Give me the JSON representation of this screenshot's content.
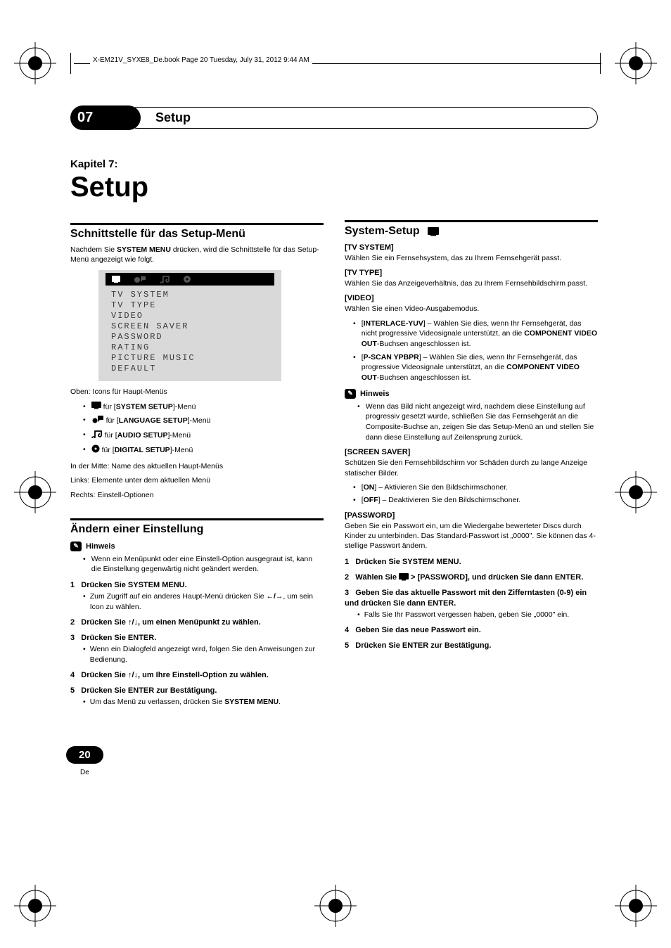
{
  "book_header": "X-EM21V_SYXE8_De.book  Page 20  Tuesday, July 31, 2012  9:44 AM",
  "chapter_num": "07",
  "chapter_banner_title": "Setup",
  "kapitel_label": "Kapitel 7:",
  "big_title": "Setup",
  "col1": {
    "sec1": {
      "title": "Schnittstelle für das Setup-Menü",
      "intro_a": "Nachdem Sie ",
      "intro_b": "SYSTEM MENU",
      "intro_c": " drücken, wird die Schnittstelle für das Setup-Menü angezeigt wie folgt.",
      "menu_items": [
        "TV SYSTEM",
        "TV TYPE",
        "VIDEO",
        "SCREEN SAVER",
        "PASSWORD",
        "RATING",
        "PICTURE MUSIC",
        "DEFAULT"
      ],
      "caption1": "Oben: Icons für Haupt-Menüs",
      "bullets": [
        {
          "pre": " für [",
          "b": "SYSTEM SETUP",
          "post": "]-Menü",
          "icon": "tv"
        },
        {
          "pre": " für [",
          "b": "LANGUAGE SETUP",
          "post": "]-Menü",
          "icon": "head"
        },
        {
          "pre": " für [",
          "b": "AUDIO SETUP",
          "post": "]-Menü",
          "icon": "note"
        },
        {
          "pre": " für [",
          "b": "DIGITAL SETUP",
          "post": "]-Menü",
          "icon": "disc"
        }
      ],
      "caption2": "In der Mitte: Name des aktuellen Haupt-Menüs",
      "caption3": "Links: Elemente unter dem aktuellen Menü",
      "caption4": "Rechts: Einstell-Optionen"
    },
    "sec2": {
      "title": "Ändern einer Einstellung",
      "hinweis_label": "Hinweis",
      "hinweis_text": "Wenn ein Menüpunkt oder eine Einstell-Option ausgegraut ist, kann die Einstellung gegenwärtig nicht geändert werden.",
      "steps": [
        {
          "n": "1",
          "t": "Drücken Sie SYSTEM MENU.",
          "sub": "Zum Zugriff auf ein anderes Haupt-Menü drücken Sie ",
          "sub_arrows": "←/→",
          "sub_end": ", um sein Icon zu wählen."
        },
        {
          "n": "2",
          "t": "Drücken Sie ",
          "arrows": "↑/↓",
          "t2": ", um einen Menüpunkt zu wählen."
        },
        {
          "n": "3",
          "t": "Drücken Sie ENTER.",
          "sub": "Wenn ein Dialogfeld angezeigt wird, folgen Sie den Anweisungen zur Bedienung."
        },
        {
          "n": "4",
          "t": "Drücken Sie ",
          "arrows": "↑/↓",
          "t2": ", um Ihre Einstell-Option zu wählen."
        },
        {
          "n": "5",
          "t": "Drücken Sie ENTER zur Bestätigung.",
          "sub": "Um das Menü zu verlassen, drücken Sie ",
          "sub_b": "SYSTEM MENU",
          "sub_end": "."
        }
      ]
    }
  },
  "col2": {
    "title": "System-Setup",
    "tv_system": {
      "h": "[TV SYSTEM]",
      "t": "Wählen Sie ein Fernsehsystem, das zu Ihrem Fernsehgerät passt."
    },
    "tv_type": {
      "h": "[TV TYPE]",
      "t": "Wählen Sie das Anzeigeverhältnis, das zu Ihrem Fernsehbildschirm passt."
    },
    "video": {
      "h": "[VIDEO]",
      "t": "Wählen Sie einen Video-Ausgabemodus.",
      "items": [
        {
          "b": "INTERLACE-YUV",
          "t1": "] – Wählen Sie dies, wenn Ihr Fernsehgerät, das nicht progressive Videosignale unterstützt, an die ",
          "b2": "COMPONENT VIDEO OUT",
          "t2": "-Buchsen angeschlossen ist."
        },
        {
          "b": "P-SCAN YPBPR",
          "t1": "] – Wählen Sie dies, wenn Ihr Fernsehgerät, das progressive Videosignale unterstützt, an die ",
          "b2": "COMPONENT VIDEO OUT",
          "t2": "-Buchsen angeschlossen ist."
        }
      ],
      "hinweis_label": "Hinweis",
      "hinweis_text": "Wenn das Bild nicht angezeigt wird, nachdem diese Einstellung auf progressiv gesetzt wurde, schließen Sie das Fernsehgerät an die Composite-Buchse an, zeigen Sie das Setup-Menü an und stellen Sie dann diese Einstellung auf Zeilensprung zurück."
    },
    "screen_saver": {
      "h": "[SCREEN SAVER]",
      "t": "Schützen Sie den Fernsehbildschirm vor Schäden durch zu lange Anzeige statischer Bilder.",
      "items": [
        {
          "b": "ON",
          "t": "] – Aktivieren Sie den Bildschirmschoner."
        },
        {
          "b": "OFF",
          "t": "] – Deaktivieren Sie den Bildschirmschoner."
        }
      ]
    },
    "password": {
      "h": "[PASSWORD]",
      "t": "Geben Sie ein Passwort ein, um die Wiedergabe bewerteter Discs durch Kinder zu unterbinden. Das Standard-Passwort ist „0000\". Sie können das 4-stellige Passwort ändern.",
      "steps": [
        {
          "n": "1",
          "t": "Drücken Sie SYSTEM MENU."
        },
        {
          "n": "2",
          "t": "Wählen Sie ",
          "t2": " > [PASSWORD], und drücken Sie dann ENTER."
        },
        {
          "n": "3",
          "t": "Geben Sie das aktuelle Passwort mit den Zifferntasten (0-9) ein und drücken Sie dann ENTER.",
          "sub": "Falls Sie Ihr Passwort vergessen haben, geben Sie „0000\" ein."
        },
        {
          "n": "4",
          "t": "Geben Sie das neue Passwort ein."
        },
        {
          "n": "5",
          "t": "Drücken Sie ENTER zur Bestätigung."
        }
      ]
    }
  },
  "page_number": "20",
  "page_lang": "De",
  "colors": {
    "bg_gray": "#d9d9d9",
    "black": "#000000"
  }
}
